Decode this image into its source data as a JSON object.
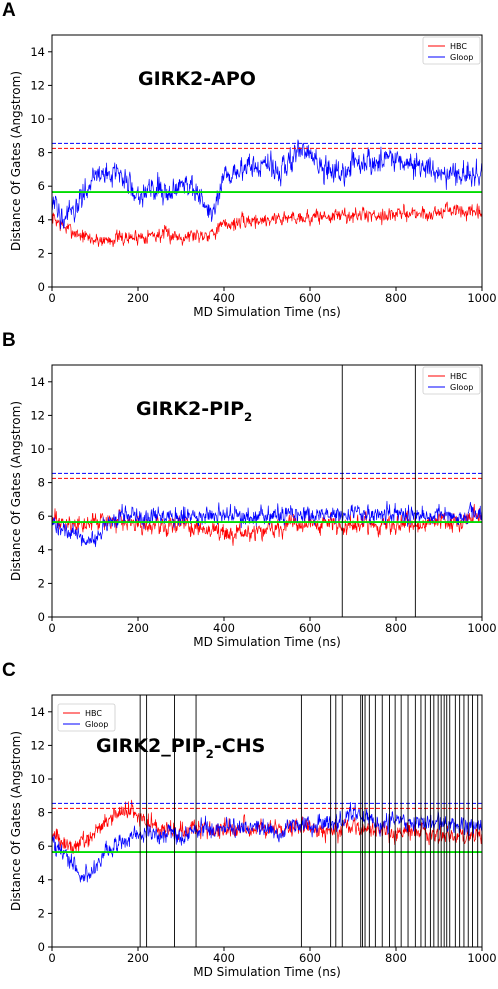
{
  "chart_data": [
    {
      "panel_label": "A",
      "type": "line",
      "annotation_parts": [
        {
          "text": "GIRK2-APO",
          "sub": false
        }
      ],
      "xlabel": "MD Simulation Time (ns)",
      "ylabel": "Distance Of Gates (Angstrom)",
      "xlim": [
        0,
        1000
      ],
      "ylim": [
        0,
        15
      ],
      "xticks": [
        0,
        200,
        400,
        600,
        800,
        1000
      ],
      "yticks": [
        0,
        2,
        4,
        6,
        8,
        10,
        12,
        14
      ],
      "legend_position": "top-right",
      "series": [
        {
          "name": "HBC",
          "color": "#ff0000",
          "x": [
            0,
            25,
            50,
            75,
            100,
            125,
            150,
            175,
            200,
            225,
            250,
            275,
            300,
            325,
            350,
            375,
            400,
            425,
            450,
            475,
            500,
            525,
            550,
            575,
            600,
            625,
            650,
            675,
            700,
            725,
            750,
            775,
            800,
            825,
            850,
            875,
            900,
            925,
            950,
            975,
            1000
          ],
          "y": [
            4.2,
            3.6,
            3.3,
            3.0,
            2.8,
            2.8,
            2.9,
            2.9,
            3.0,
            3.1,
            3.1,
            3.1,
            3.0,
            3.1,
            3.1,
            3.3,
            3.7,
            3.8,
            3.9,
            4.0,
            4.0,
            4.1,
            4.1,
            4.2,
            4.1,
            4.2,
            4.2,
            4.3,
            4.2,
            4.3,
            4.3,
            4.3,
            4.3,
            4.4,
            4.4,
            4.3,
            4.5,
            4.6,
            4.5,
            4.4,
            4.3
          ]
        },
        {
          "name": "Gloop",
          "color": "#0000ff",
          "x": [
            0,
            25,
            50,
            75,
            100,
            125,
            150,
            175,
            200,
            225,
            250,
            275,
            300,
            325,
            350,
            375,
            400,
            425,
            450,
            475,
            500,
            525,
            550,
            575,
            600,
            625,
            650,
            675,
            700,
            725,
            750,
            775,
            800,
            825,
            850,
            875,
            900,
            925,
            950,
            975,
            1000
          ],
          "y": [
            4.8,
            4.4,
            4.2,
            5.8,
            6.6,
            6.7,
            6.8,
            6.2,
            5.6,
            5.7,
            6.0,
            5.5,
            6.4,
            6.1,
            4.8,
            4.4,
            6.4,
            6.8,
            7.2,
            7.1,
            7.3,
            6.8,
            7.6,
            7.9,
            8.0,
            7.0,
            6.9,
            6.7,
            7.4,
            7.6,
            7.2,
            7.8,
            7.7,
            7.4,
            7.2,
            6.9,
            7.0,
            6.7,
            6.6,
            6.8,
            6.6
          ]
        }
      ],
      "hlines": [
        {
          "y": 8.55,
          "color": "#0000ff",
          "style": "dashed"
        },
        {
          "y": 8.25,
          "color": "#ff0000",
          "style": "dashed"
        },
        {
          "y": 5.65,
          "color": "#00dd00",
          "style": "solid"
        }
      ],
      "vlines": []
    },
    {
      "panel_label": "B",
      "type": "line",
      "annotation_parts": [
        {
          "text": "GIRK2-PIP",
          "sub": false
        },
        {
          "text": "2",
          "sub": true
        }
      ],
      "xlabel": "MD Simulation Time (ns)",
      "ylabel": "Distance Of Gates (Angstrom)",
      "xlim": [
        0,
        1000
      ],
      "ylim": [
        0,
        15
      ],
      "xticks": [
        0,
        200,
        400,
        600,
        800,
        1000
      ],
      "yticks": [
        0,
        2,
        4,
        6,
        8,
        10,
        12,
        14
      ],
      "legend_position": "top-right",
      "series": [
        {
          "name": "HBC",
          "color": "#ff0000",
          "x": [
            0,
            25,
            50,
            75,
            100,
            125,
            150,
            175,
            200,
            225,
            250,
            275,
            300,
            325,
            350,
            375,
            400,
            425,
            450,
            475,
            500,
            525,
            550,
            575,
            600,
            625,
            650,
            675,
            700,
            725,
            750,
            775,
            800,
            825,
            850,
            875,
            900,
            925,
            950,
            975,
            1000
          ],
          "y": [
            5.8,
            5.6,
            5.5,
            5.5,
            5.6,
            5.7,
            5.6,
            5.5,
            5.6,
            5.5,
            5.4,
            5.5,
            5.5,
            5.3,
            5.2,
            5.3,
            5.1,
            5.0,
            5.0,
            5.1,
            5.2,
            5.3,
            5.4,
            5.5,
            5.6,
            5.5,
            5.6,
            5.4,
            5.5,
            5.6,
            5.5,
            5.4,
            5.5,
            5.6,
            5.5,
            5.6,
            5.7,
            5.6,
            5.6,
            5.8,
            6.0
          ]
        },
        {
          "name": "Gloop",
          "color": "#0000ff",
          "x": [
            0,
            25,
            50,
            75,
            100,
            125,
            150,
            175,
            200,
            225,
            250,
            275,
            300,
            325,
            350,
            375,
            400,
            425,
            450,
            475,
            500,
            525,
            550,
            575,
            600,
            625,
            650,
            675,
            700,
            725,
            750,
            775,
            800,
            825,
            850,
            875,
            900,
            925,
            950,
            975,
            1000
          ],
          "y": [
            5.5,
            5.2,
            5.0,
            4.6,
            4.6,
            5.4,
            6.0,
            6.1,
            6.0,
            6.0,
            6.1,
            6.0,
            6.0,
            6.1,
            5.9,
            6.0,
            6.0,
            6.1,
            6.0,
            5.9,
            6.0,
            6.1,
            6.0,
            6.1,
            6.0,
            6.0,
            6.1,
            6.0,
            6.1,
            6.1,
            6.0,
            6.2,
            6.1,
            6.0,
            6.1,
            6.0,
            6.2,
            6.1,
            6.0,
            6.1,
            6.2
          ]
        }
      ],
      "hlines": [
        {
          "y": 8.55,
          "color": "#0000ff",
          "style": "dashed"
        },
        {
          "y": 8.25,
          "color": "#ff0000",
          "style": "dashed"
        },
        {
          "y": 5.65,
          "color": "#00dd00",
          "style": "solid"
        }
      ],
      "vlines": [
        675,
        845
      ]
    },
    {
      "panel_label": "C",
      "type": "line",
      "annotation_parts": [
        {
          "text": "GIRK2_PIP",
          "sub": false
        },
        {
          "text": "2",
          "sub": true
        },
        {
          "text": "-CHS",
          "sub": false
        }
      ],
      "xlabel": "MD Simulation Time (ns)",
      "ylabel": "Distance Of Gates (Angstrom)",
      "xlim": [
        0,
        1000
      ],
      "ylim": [
        0,
        15
      ],
      "xticks": [
        0,
        200,
        400,
        600,
        800,
        1000
      ],
      "yticks": [
        0,
        2,
        4,
        6,
        8,
        10,
        12,
        14
      ],
      "legend_position": "top-left",
      "series": [
        {
          "name": "HBC",
          "color": "#ff0000",
          "x": [
            0,
            25,
            50,
            75,
            100,
            125,
            150,
            175,
            200,
            225,
            250,
            275,
            300,
            325,
            350,
            375,
            400,
            425,
            450,
            475,
            500,
            525,
            550,
            575,
            600,
            625,
            650,
            675,
            700,
            725,
            750,
            775,
            800,
            825,
            850,
            875,
            900,
            925,
            950,
            975,
            1000
          ],
          "y": [
            6.8,
            6.2,
            5.9,
            6.2,
            6.9,
            7.5,
            7.9,
            8.1,
            7.8,
            7.4,
            7.2,
            6.9,
            6.8,
            7.0,
            7.1,
            6.9,
            7.0,
            7.1,
            7.0,
            7.2,
            7.1,
            7.0,
            7.1,
            7.2,
            7.0,
            6.9,
            6.9,
            7.0,
            7.1,
            7.0,
            6.9,
            6.8,
            6.8,
            6.9,
            6.8,
            6.7,
            6.6,
            6.8,
            6.5,
            6.6,
            6.7
          ]
        },
        {
          "name": "Gloop",
          "color": "#0000ff",
          "x": [
            0,
            25,
            50,
            75,
            100,
            125,
            150,
            175,
            200,
            225,
            250,
            275,
            300,
            325,
            350,
            375,
            400,
            425,
            450,
            475,
            500,
            525,
            550,
            575,
            600,
            625,
            650,
            675,
            700,
            725,
            750,
            775,
            800,
            825,
            850,
            875,
            900,
            925,
            950,
            975,
            1000
          ],
          "y": [
            6.2,
            5.6,
            4.9,
            4.1,
            4.6,
            5.6,
            6.1,
            6.4,
            6.6,
            6.7,
            6.6,
            6.8,
            6.4,
            6.9,
            7.1,
            7.0,
            7.1,
            7.2,
            7.0,
            7.2,
            7.0,
            6.9,
            7.1,
            7.3,
            7.1,
            7.4,
            7.3,
            7.5,
            8.0,
            7.7,
            7.5,
            7.3,
            7.6,
            7.4,
            7.3,
            7.4,
            7.3,
            7.2,
            7.1,
            7.3,
            7.2
          ]
        }
      ],
      "hlines": [
        {
          "y": 8.55,
          "color": "#0000ff",
          "style": "dashed"
        },
        {
          "y": 8.25,
          "color": "#ff0000",
          "style": "dashed"
        },
        {
          "y": 5.65,
          "color": "#00dd00",
          "style": "solid"
        }
      ],
      "vlines": [
        205,
        220,
        285,
        335,
        580,
        648,
        660,
        675,
        718,
        722,
        728,
        738,
        752,
        768,
        785,
        798,
        812,
        828,
        845,
        858,
        868,
        880,
        888,
        898,
        905,
        912,
        918,
        925,
        938,
        948,
        958,
        968,
        978,
        990
      ]
    }
  ]
}
